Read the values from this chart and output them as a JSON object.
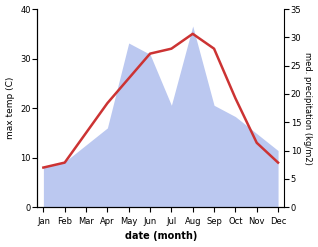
{
  "months": [
    "Jan",
    "Feb",
    "Mar",
    "Apr",
    "May",
    "Jun",
    "Jul",
    "Aug",
    "Sep",
    "Oct",
    "Nov",
    "Dec"
  ],
  "temp": [
    8,
    9,
    15,
    21,
    26,
    31,
    32,
    35,
    32,
    22,
    13,
    9
  ],
  "precip": [
    7,
    8,
    11,
    14,
    29,
    27,
    18,
    32,
    18,
    16,
    13,
    10
  ],
  "temp_color": "#cc3333",
  "precip_fill_color": "#bbc8f0",
  "temp_ylim": [
    0,
    40
  ],
  "precip_ylim": [
    0,
    35
  ],
  "temp_yticks": [
    0,
    10,
    20,
    30,
    40
  ],
  "precip_yticks": [
    0,
    5,
    10,
    15,
    20,
    25,
    30,
    35
  ],
  "xlabel": "date (month)",
  "ylabel_left": "max temp (C)",
  "ylabel_right": "med. precipitation (kg/m2)",
  "background_color": "#ffffff",
  "line_width": 1.8
}
